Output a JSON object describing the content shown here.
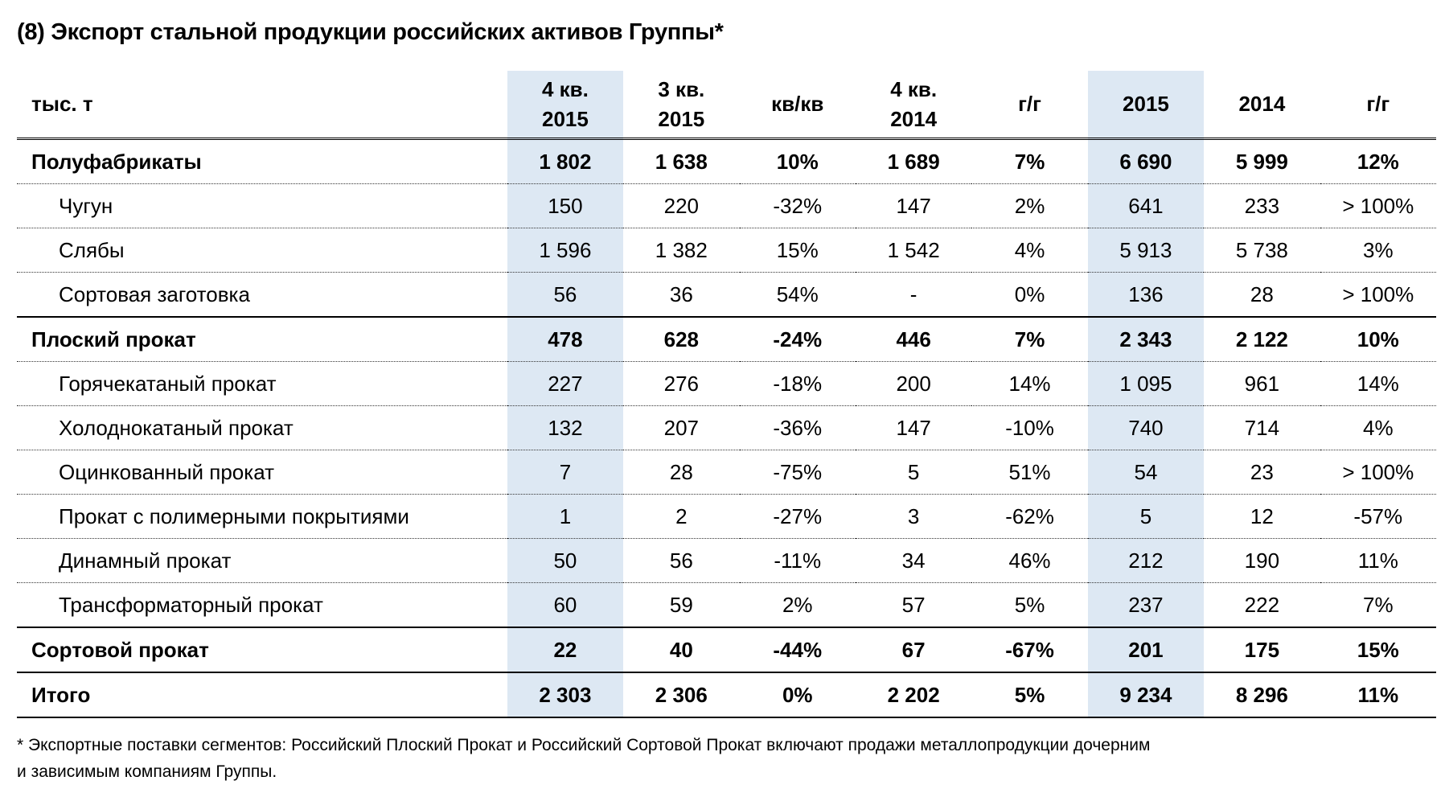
{
  "title": "(8) Экспорт стальной продукции российских активов Группы*",
  "table": {
    "headers": [
      {
        "l1": "тыс. т",
        "l2": ""
      },
      {
        "l1": "4 кв.",
        "l2": "2015"
      },
      {
        "l1": "3 кв.",
        "l2": "2015"
      },
      {
        "l1": "кв/кв",
        "l2": ""
      },
      {
        "l1": "4 кв.",
        "l2": "2014"
      },
      {
        "l1": "г/г",
        "l2": ""
      },
      {
        "l1": "2015",
        "l2": ""
      },
      {
        "l1": "2014",
        "l2": ""
      },
      {
        "l1": "г/г",
        "l2": ""
      }
    ],
    "rows": [
      {
        "label": "Полуфабрикаты",
        "v": [
          "1 802",
          "1 638",
          "10%",
          "1 689",
          "7%",
          "6 690",
          "5 999",
          "12%"
        ]
      },
      {
        "label": "Чугун",
        "v": [
          "150",
          "220",
          "-32%",
          "147",
          "2%",
          "641",
          "233",
          "> 100%"
        ]
      },
      {
        "label": "Слябы",
        "v": [
          "1 596",
          "1 382",
          "15%",
          "1 542",
          "4%",
          "5 913",
          "5 738",
          "3%"
        ]
      },
      {
        "label": "Сортовая заготовка",
        "v": [
          "56",
          "36",
          "54%",
          "-",
          "0%",
          "136",
          "28",
          "> 100%"
        ]
      },
      {
        "label": "Плоский прокат",
        "v": [
          "478",
          "628",
          "-24%",
          "446",
          "7%",
          "2 343",
          "2 122",
          "10%"
        ]
      },
      {
        "label": "Горячекатаный прокат",
        "v": [
          "227",
          "276",
          "-18%",
          "200",
          "14%",
          "1 095",
          "961",
          "14%"
        ]
      },
      {
        "label": "Холоднокатаный прокат",
        "v": [
          "132",
          "207",
          "-36%",
          "147",
          "-10%",
          "740",
          "714",
          "4%"
        ]
      },
      {
        "label": "Оцинкованный прокат",
        "v": [
          "7",
          "28",
          "-75%",
          "5",
          "51%",
          "54",
          "23",
          "> 100%"
        ]
      },
      {
        "label": "Прокат с полимерными покрытиями",
        "v": [
          "1",
          "2",
          "-27%",
          "3",
          "-62%",
          "5",
          "12",
          "-57%"
        ]
      },
      {
        "label": "Динамный прокат",
        "v": [
          "50",
          "56",
          "-11%",
          "34",
          "46%",
          "212",
          "190",
          "11%"
        ]
      },
      {
        "label": "Трансформаторный прокат",
        "v": [
          "60",
          "59",
          "2%",
          "57",
          "5%",
          "237",
          "222",
          "7%"
        ]
      },
      {
        "label": "Сортовой прокат",
        "v": [
          "22",
          "40",
          "-44%",
          "67",
          "-67%",
          "201",
          "175",
          "15%"
        ]
      },
      {
        "label": "Итого",
        "v": [
          "2 303",
          "2 306",
          "0%",
          "2 202",
          "5%",
          "9 234",
          "8 296",
          "11%"
        ]
      }
    ]
  },
  "footnote": {
    "line1": "* Экспортные поставки сегментов: Российский Плоский Прокат и Российский Сортовой Прокат включают продажи металлопродукции дочерним",
    "line2": "и зависимым компаниям Группы."
  },
  "colors": {
    "highlight": "#dde8f3"
  }
}
